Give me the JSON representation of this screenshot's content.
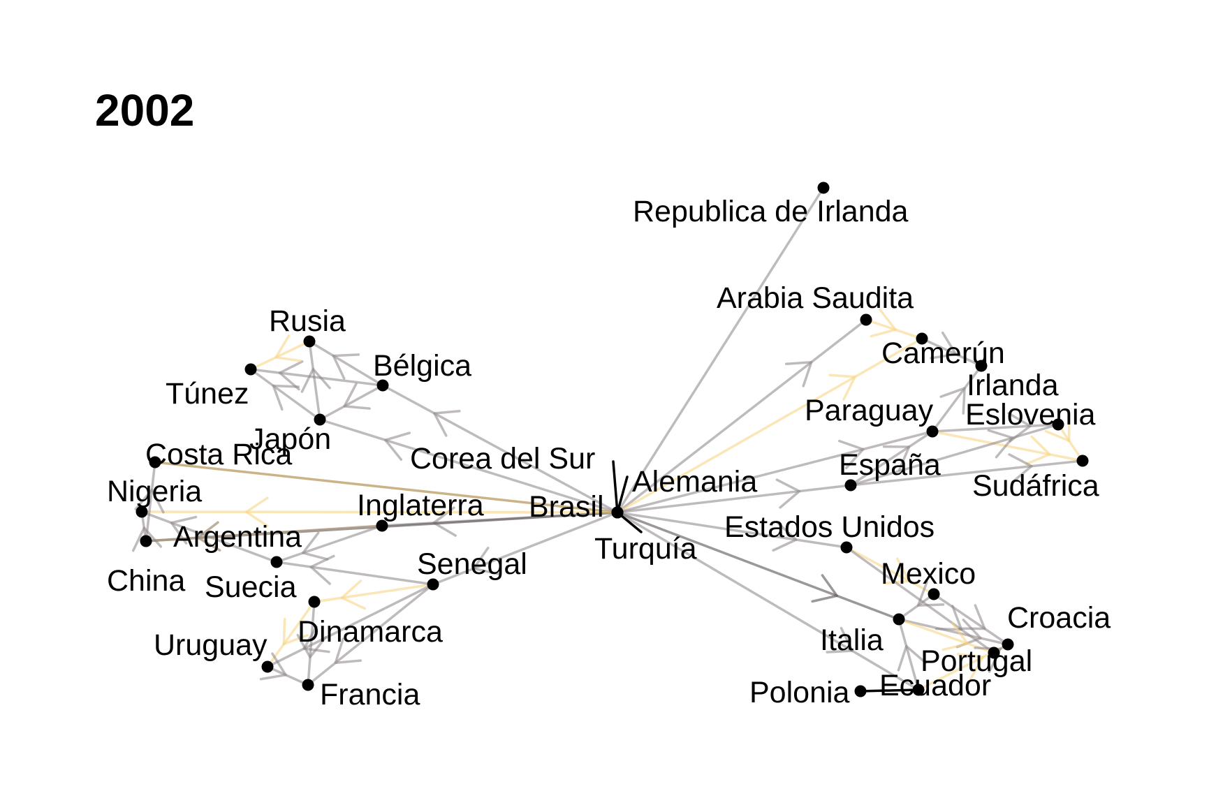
{
  "title": "2002",
  "colors": {
    "background": "#ffffff",
    "node": "#000000",
    "edge_gray": "#8a8486",
    "edge_yellow": "#f6d27a",
    "edge_dark": "#5a5256",
    "edge_black": "#000000"
  },
  "nodes": [
    {
      "id": "brasil",
      "label": "Brasil"
    },
    {
      "id": "turquia",
      "label": "Turquía"
    },
    {
      "id": "alemania",
      "label": "Alemania"
    },
    {
      "id": "corea",
      "label": "Corea del Sur"
    },
    {
      "id": "rep_irlanda",
      "label": "Republica de Irlanda"
    },
    {
      "id": "arabia",
      "label": "Arabia Saudita"
    },
    {
      "id": "camerun",
      "label": "Camerún"
    },
    {
      "id": "irlanda",
      "label": "Irlanda"
    },
    {
      "id": "paraguay",
      "label": "Paraguay"
    },
    {
      "id": "eslovenia",
      "label": "Eslovenia"
    },
    {
      "id": "espana",
      "label": "España"
    },
    {
      "id": "sudafrica",
      "label": "Sudáfrica"
    },
    {
      "id": "eeuu",
      "label": "Estados Unidos"
    },
    {
      "id": "mexico",
      "label": "Mexico"
    },
    {
      "id": "croacia",
      "label": "Croacia"
    },
    {
      "id": "italia",
      "label": "Italia"
    },
    {
      "id": "portugal",
      "label": "Portugal"
    },
    {
      "id": "ecuador",
      "label": "Ecuador"
    },
    {
      "id": "polonia",
      "label": "Polonia"
    },
    {
      "id": "rusia",
      "label": "Rusia"
    },
    {
      "id": "belgica",
      "label": "Bélgica"
    },
    {
      "id": "tunez",
      "label": "Túnez"
    },
    {
      "id": "japon",
      "label": "Japón"
    },
    {
      "id": "costa_rica",
      "label": "Costa Rica"
    },
    {
      "id": "nigeria",
      "label": "Nigeria"
    },
    {
      "id": "inglaterra",
      "label": "Inglaterra"
    },
    {
      "id": "argentina",
      "label": "Argentina"
    },
    {
      "id": "china",
      "label": "China"
    },
    {
      "id": "suecia",
      "label": "Suecia"
    },
    {
      "id": "senegal",
      "label": "Senegal"
    },
    {
      "id": "dinamarca",
      "label": "Dinamarca"
    },
    {
      "id": "uruguay",
      "label": "Uruguay"
    },
    {
      "id": "francia",
      "label": "Francia"
    }
  ],
  "edges": [
    {
      "from": "rep_irlanda",
      "to": "brasil",
      "color": "gray",
      "arrow": false
    },
    {
      "from": "brasil",
      "to": "arabia",
      "color": "gray",
      "arrow": true
    },
    {
      "from": "brasil",
      "to": "camerun",
      "color": "yellow",
      "arrow": true
    },
    {
      "from": "brasil",
      "to": "espana",
      "color": "gray",
      "arrow": true
    },
    {
      "from": "brasil",
      "to": "paraguay",
      "color": "gray",
      "arrow": true
    },
    {
      "from": "brasil",
      "to": "eeuu",
      "color": "gray",
      "arrow": true
    },
    {
      "from": "brasil",
      "to": "italia",
      "color": "dark",
      "arrow": true
    },
    {
      "from": "brasil",
      "to": "ecuador",
      "color": "gray",
      "arrow": true
    },
    {
      "from": "brasil",
      "to": "belgica",
      "color": "gray",
      "arrow": true
    },
    {
      "from": "brasil",
      "to": "japon",
      "color": "gray",
      "arrow": true
    },
    {
      "from": "brasil",
      "to": "inglaterra",
      "color": "gray",
      "arrow": true
    },
    {
      "from": "brasil",
      "to": "costa_rica",
      "color": "tan",
      "arrow": false
    },
    {
      "from": "brasil",
      "to": "argentina",
      "color": "dark",
      "arrow": false
    },
    {
      "from": "brasil",
      "to": "nigeria",
      "color": "yellow",
      "arrow": true
    },
    {
      "from": "brasil",
      "to": "senegal",
      "color": "gray",
      "arrow": true
    },
    {
      "from": "brasil",
      "to": "corea",
      "color": "black",
      "arrow": false
    },
    {
      "from": "brasil",
      "to": "turquia",
      "color": "black",
      "arrow": false
    },
    {
      "from": "brasil",
      "to": "alemania",
      "color": "black",
      "arrow": false
    },
    {
      "from": "polonia",
      "to": "ecuador",
      "color": "black",
      "arrow": false
    },
    {
      "from": "inglaterra",
      "to": "argentina",
      "color": "yellow",
      "arrow": true
    },
    {
      "from": "inglaterra",
      "to": "suecia",
      "color": "gray",
      "arrow": true
    },
    {
      "from": "inglaterra",
      "to": "china",
      "color": "gray",
      "arrow": true
    },
    {
      "from": "senegal",
      "to": "dinamarca",
      "color": "yellow",
      "arrow": true
    },
    {
      "from": "senegal",
      "to": "suecia",
      "color": "gray",
      "arrow": true
    },
    {
      "from": "senegal",
      "to": "francia",
      "color": "gray",
      "arrow": true
    },
    {
      "from": "senegal",
      "to": "uruguay",
      "color": "gray",
      "arrow": true
    },
    {
      "from": "argentina",
      "to": "nigeria",
      "color": "gray",
      "arrow": true
    },
    {
      "from": "suecia",
      "to": "nigeria",
      "color": "gray",
      "arrow": true
    },
    {
      "from": "china",
      "to": "costa_rica",
      "color": "gray",
      "arrow": true
    },
    {
      "from": "dinamarca",
      "to": "uruguay",
      "color": "yellow",
      "arrow": true
    },
    {
      "from": "dinamarca",
      "to": "francia",
      "color": "gray",
      "arrow": true
    },
    {
      "from": "uruguay",
      "to": "francia",
      "color": "gray",
      "arrow": true
    },
    {
      "from": "belgica",
      "to": "rusia",
      "color": "gray",
      "arrow": true
    },
    {
      "from": "belgica",
      "to": "tunez",
      "color": "gray",
      "arrow": true
    },
    {
      "from": "belgica",
      "to": "japon",
      "color": "gray",
      "arrow": true
    },
    {
      "from": "japon",
      "to": "tunez",
      "color": "gray",
      "arrow": true
    },
    {
      "from": "japon",
      "to": "rusia",
      "color": "gray",
      "arrow": true
    },
    {
      "from": "rusia",
      "to": "tunez",
      "color": "yellow",
      "arrow": true
    },
    {
      "from": "arabia",
      "to": "camerun",
      "color": "yellow",
      "arrow": true
    },
    {
      "from": "camerun",
      "to": "irlanda",
      "color": "gray",
      "arrow": true
    },
    {
      "from": "paraguay",
      "to": "irlanda",
      "color": "gray",
      "arrow": true
    },
    {
      "from": "paraguay",
      "to": "eslovenia",
      "color": "gray",
      "arrow": true
    },
    {
      "from": "paraguay",
      "to": "sudafrica",
      "color": "yellow",
      "arrow": true
    },
    {
      "from": "espana",
      "to": "eslovenia",
      "color": "gray",
      "arrow": true
    },
    {
      "from": "espana",
      "to": "sudafrica",
      "color": "gray",
      "arrow": true
    },
    {
      "from": "espana",
      "to": "paraguay",
      "color": "gray",
      "arrow": true
    },
    {
      "from": "eslovenia",
      "to": "sudafrica",
      "color": "yellow",
      "arrow": true
    },
    {
      "from": "eeuu",
      "to": "mexico",
      "color": "yellow",
      "arrow": true
    },
    {
      "from": "eeuu",
      "to": "portugal",
      "color": "gray",
      "arrow": true
    },
    {
      "from": "mexico",
      "to": "croacia",
      "color": "gray",
      "arrow": true
    },
    {
      "from": "mexico",
      "to": "italia",
      "color": "gray",
      "arrow": true
    },
    {
      "from": "italia",
      "to": "croacia",
      "color": "gray",
      "arrow": true
    },
    {
      "from": "italia",
      "to": "portugal",
      "color": "yellow",
      "arrow": true
    },
    {
      "from": "ecuador",
      "to": "italia",
      "color": "gray",
      "arrow": true
    },
    {
      "from": "ecuador",
      "to": "croacia",
      "color": "yellow",
      "arrow": true
    },
    {
      "from": "portugal",
      "to": "croacia",
      "color": "gray",
      "arrow": true
    }
  ]
}
